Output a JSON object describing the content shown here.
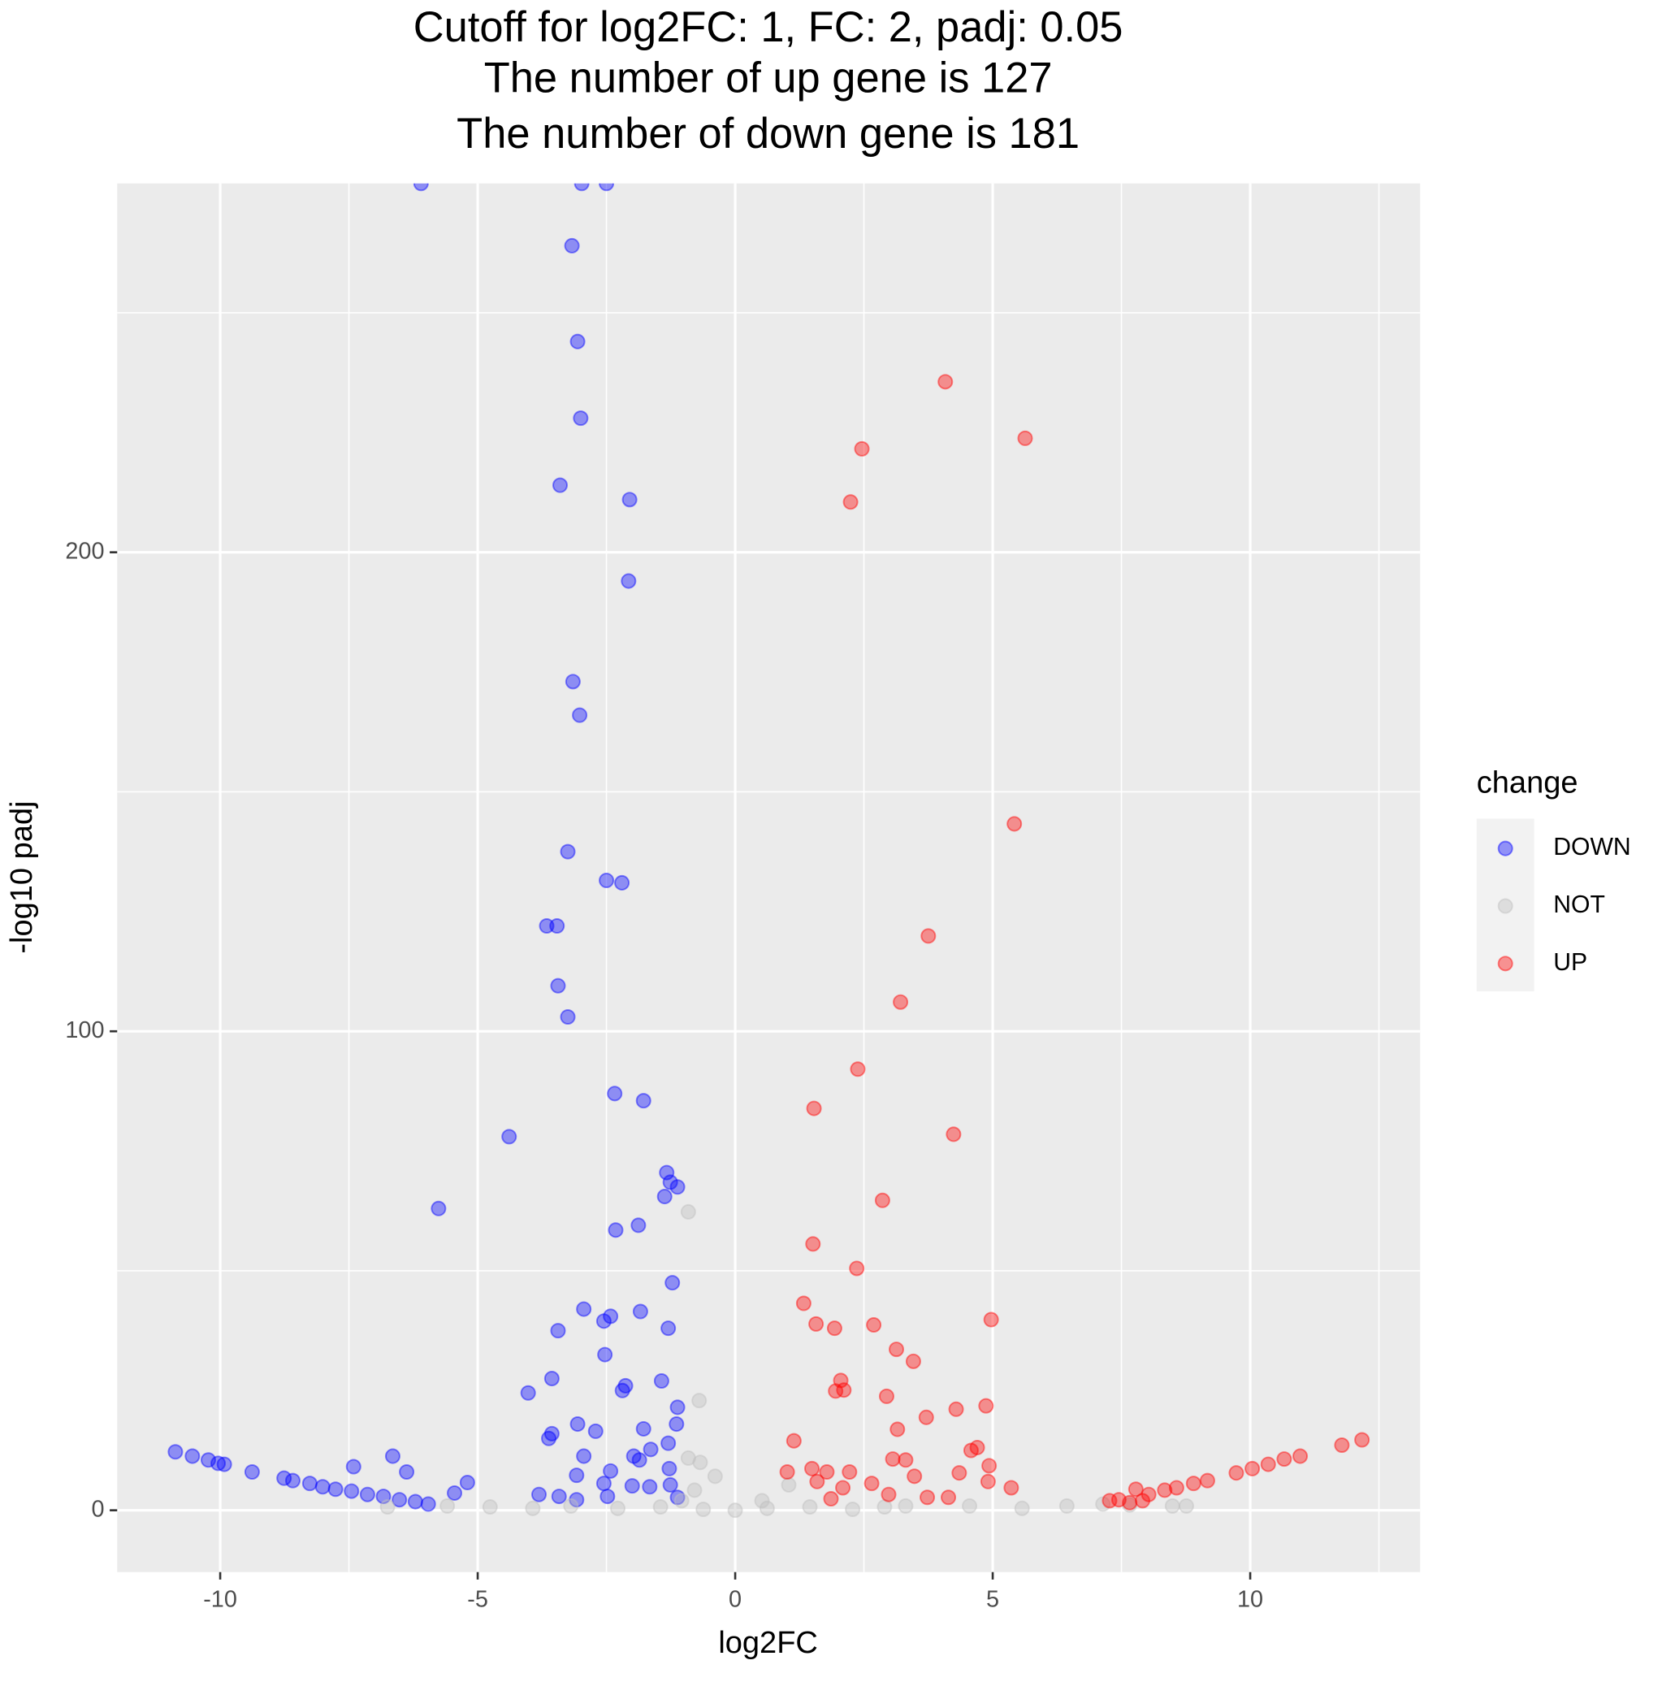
{
  "chart_data": {
    "type": "scatter",
    "title": [
      "Cutoff for log2FC: 1, FC: 2, padj: 0.05",
      "The number of up gene is 127",
      "The number of down gene is 181"
    ],
    "x_label": "log2FC",
    "y_label": "-log10 padj",
    "legend_title": "change",
    "legend_position": "right",
    "grid": true,
    "xlim": [
      -12.0,
      13.3
    ],
    "ylim": [
      -12.9,
      277
    ],
    "xticks": [
      -10,
      -5,
      0,
      5,
      10
    ],
    "yticks": [
      0,
      100,
      200
    ],
    "series": [
      {
        "name": "DOWN",
        "color": "#0000ff",
        "x": [
          -6.1,
          -2.98,
          -2.5,
          -3.17,
          -3.06,
          -3.0,
          -3.4,
          -2.05,
          -2.07,
          -3.15,
          -3.02,
          -3.25,
          -2.5,
          -2.2,
          -3.66,
          -3.46,
          -3.44,
          -3.25,
          -2.34,
          -1.78,
          -4.39,
          -5.76,
          -1.33,
          -1.26,
          -1.12,
          -1.37,
          -2.32,
          -1.88,
          -1.22,
          -2.94,
          -2.42,
          -2.55,
          -1.84,
          -3.44,
          -1.3,
          -2.53,
          -3.56,
          -2.13,
          -2.19,
          -4.02,
          -1.43,
          -1.12,
          -1.14,
          -3.06,
          -2.71,
          -1.78,
          -3.56,
          -3.62,
          -1.3,
          -1.64,
          -2.94,
          -1.97,
          -1.86,
          -2.42,
          -1.28,
          -3.08,
          -2.55,
          -1.26,
          -3.81,
          -3.42,
          -2.48,
          -3.08,
          -2.0,
          -1.66,
          -1.12,
          -10.87,
          -10.54,
          -10.23,
          -10.04,
          -9.92,
          -9.38,
          -8.76,
          -8.59,
          -8.26,
          -8.01,
          -7.76,
          -7.45,
          -7.14,
          -6.83,
          -6.52,
          -6.21,
          -5.96,
          -7.41,
          -6.65,
          -6.38,
          -5.2,
          -5.45
        ],
        "values": [
          277,
          277,
          277,
          264,
          244,
          228,
          214,
          211,
          194,
          173,
          166,
          137.5,
          131.5,
          131,
          122,
          122,
          109.5,
          103,
          87,
          85.5,
          78,
          63,
          70.5,
          68.5,
          67.5,
          65.5,
          58.5,
          59.5,
          47.5,
          42,
          40.5,
          39.5,
          41.5,
          37.5,
          38,
          32.5,
          27.5,
          26,
          25,
          24.5,
          27,
          21.5,
          18,
          18,
          16.5,
          17,
          16,
          15,
          14,
          12.7,
          11.3,
          11.3,
          10.5,
          8.2,
          8.7,
          7.3,
          5.6,
          5.3,
          3.3,
          2.9,
          2.9,
          2.2,
          5.1,
          4.9,
          2.7,
          12.2,
          11.3,
          10.5,
          9.8,
          9.6,
          8.0,
          6.7,
          6.2,
          5.6,
          4.9,
          4.4,
          4.0,
          3.3,
          2.9,
          2.2,
          1.8,
          1.3,
          9.1,
          11.3,
          8.0,
          5.8,
          3.6
        ]
      },
      {
        "name": "NOT",
        "color": "#bebebe",
        "x": [
          -0.91,
          -0.7,
          -0.91,
          -0.68,
          -0.79,
          -0.39,
          -6.75,
          -5.59,
          -4.76,
          -3.93,
          -3.19,
          -2.28,
          -1.45,
          -0.62,
          0,
          0.62,
          1.45,
          2.28,
          2.9,
          3.31,
          4.55,
          5.57,
          6.44,
          7.14,
          7.66,
          8.49,
          8.76,
          1.04,
          0.52,
          -1.04
        ],
        "values": [
          62.3,
          22.9,
          10.9,
          10,
          4.2,
          7.1,
          0.7,
          0.9,
          0.7,
          0.4,
          0.9,
          0.4,
          0.7,
          0.2,
          0,
          0.4,
          0.7,
          0.2,
          0.7,
          0.9,
          0.9,
          0.4,
          0.9,
          1.3,
          1.1,
          0.9,
          0.9,
          5.3,
          2.0,
          2.0
        ]
      },
      {
        "name": "UP",
        "color": "#ff0000",
        "x": [
          4.08,
          5.63,
          2.46,
          2.24,
          5.42,
          3.75,
          3.21,
          2.38,
          1.53,
          4.24,
          2.86,
          1.51,
          2.36,
          1.33,
          1.57,
          1.93,
          2.69,
          4.97,
          3.13,
          3.46,
          2.05,
          1.95,
          2.11,
          2.94,
          4.87,
          4.29,
          3.71,
          3.15,
          1.14,
          4.7,
          4.58,
          3.06,
          3.31,
          4.93,
          1.01,
          1.49,
          1.78,
          2.22,
          3.48,
          4.35,
          2.65,
          1.59,
          2.09,
          4.91,
          5.36,
          3.73,
          4.14,
          1.86,
          2.98,
          12.17,
          11.78,
          10.97,
          10.66,
          10.35,
          10.04,
          9.73,
          9.17,
          8.9,
          8.57,
          8.34,
          8.03,
          7.78,
          7.45,
          7.27,
          7.91,
          7.66
        ],
        "values": [
          235.6,
          223.8,
          221.6,
          210.5,
          143.3,
          119.9,
          106.1,
          92.1,
          83.9,
          78.5,
          64.7,
          55.6,
          50.5,
          43.2,
          38.9,
          38.0,
          38.7,
          39.8,
          33.6,
          31.1,
          27.1,
          24.9,
          25.1,
          23.8,
          21.8,
          21.1,
          19.4,
          16.9,
          14.5,
          13.1,
          12.5,
          10.7,
          10.5,
          9.3,
          8.0,
          8.7,
          8.0,
          8.0,
          7.1,
          7.8,
          5.6,
          6.0,
          4.7,
          6.0,
          4.7,
          2.7,
          2.7,
          2.4,
          3.3,
          14.7,
          13.6,
          11.3,
          10.7,
          9.6,
          8.7,
          7.8,
          6.2,
          5.6,
          4.7,
          4.2,
          3.3,
          4.4,
          2.2,
          2.0,
          2.0,
          1.6
        ]
      }
    ]
  }
}
